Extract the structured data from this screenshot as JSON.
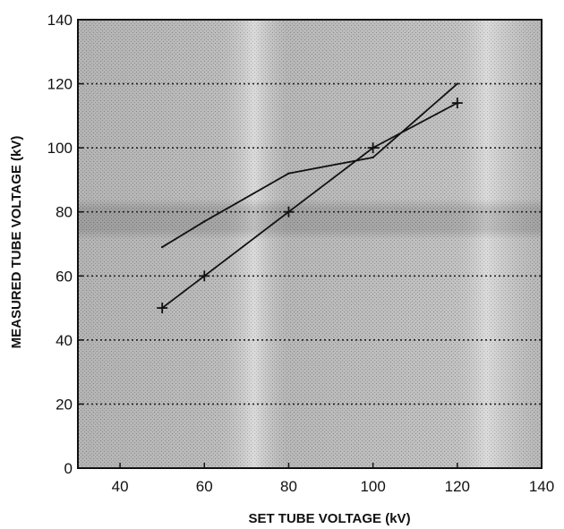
{
  "chart_data": {
    "type": "line",
    "title": "",
    "xlabel": "SET TUBE VOLTAGE (kV)",
    "ylabel": "MEASURED TUBE VOLTAGE (kV)",
    "xlim": [
      30,
      140
    ],
    "ylim": [
      0,
      140
    ],
    "xticks": [
      40,
      60,
      80,
      100,
      120,
      140
    ],
    "yticks": [
      0,
      20,
      40,
      60,
      80,
      100,
      120,
      140
    ],
    "grid": "horizontal dotted lines at 20, 40, 60, 80, 100, 120",
    "series": [
      {
        "marker": "none",
        "x": [
          50,
          60,
          80,
          100,
          120
        ],
        "y": [
          69,
          77,
          92,
          97,
          120
        ]
      },
      {
        "marker": "plus",
        "x": [
          50,
          60,
          80,
          100,
          120
        ],
        "y": [
          50,
          60,
          80,
          100,
          114
        ]
      }
    ],
    "colors": {
      "line": "#111111",
      "plot_background": "#bdbdbd"
    }
  }
}
